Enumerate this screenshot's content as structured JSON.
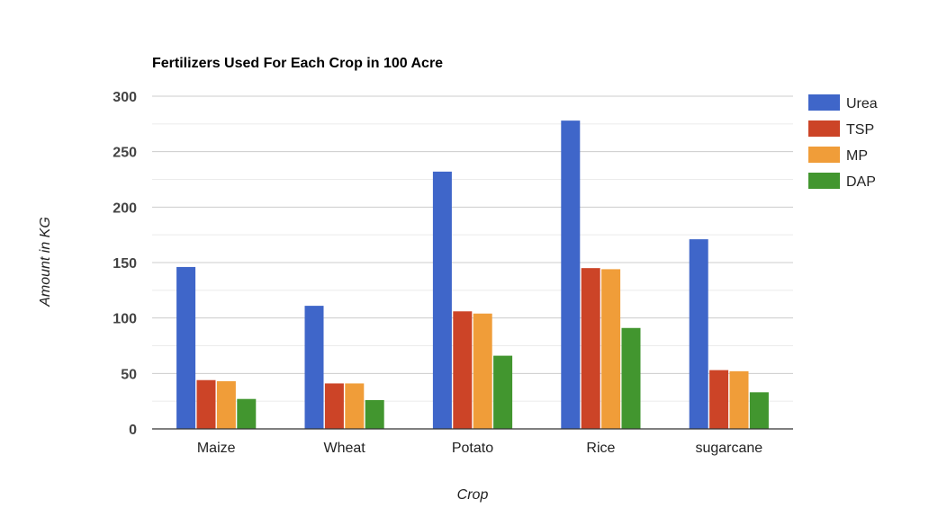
{
  "chart_data": {
    "type": "bar",
    "title": "Fertilizers Used For Each Crop in 100 Acre",
    "xlabel": "Crop",
    "ylabel": "Amount in KG",
    "categories": [
      "Maize",
      "Wheat",
      "Potato",
      "Rice",
      "sugarcane"
    ],
    "series": [
      {
        "name": "Urea",
        "color": "#3f66c9",
        "values": [
          146,
          111,
          232,
          278,
          171
        ]
      },
      {
        "name": "TSP",
        "color": "#cc4427",
        "values": [
          44,
          41,
          106,
          145,
          53
        ]
      },
      {
        "name": "MP",
        "color": "#f09d39",
        "values": [
          43,
          41,
          104,
          144,
          52
        ]
      },
      {
        "name": "DAP",
        "color": "#42962f",
        "values": [
          27,
          26,
          66,
          91,
          33
        ]
      }
    ],
    "ylim": [
      0,
      300
    ],
    "yticks": [
      "0",
      "50",
      "100",
      "150",
      "200",
      "250",
      "300"
    ],
    "grid": true,
    "legend_position": "right"
  }
}
